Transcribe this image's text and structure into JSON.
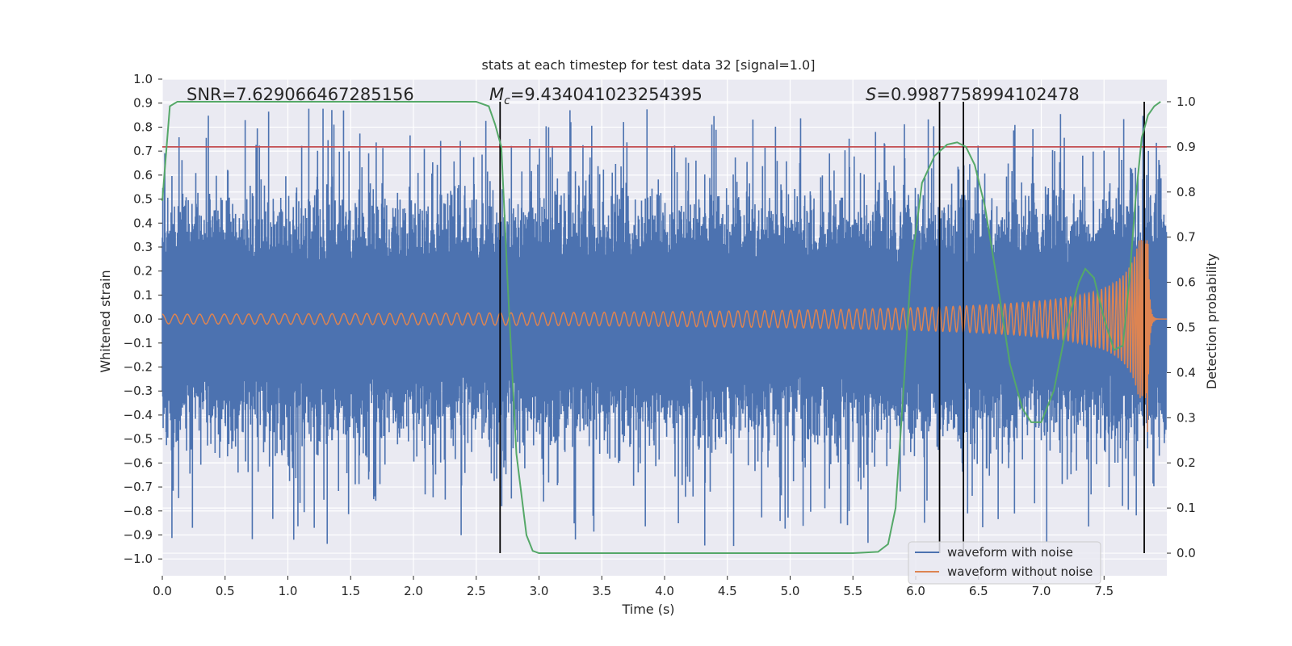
{
  "chart_data": {
    "type": "line",
    "title": "stats at each timestep for test data 32 [signal=1.0]",
    "xlabel": "Time (s)",
    "ylabel": "Whitened strain",
    "y2label": "Detection probability",
    "xlim": [
      0.0,
      8.0
    ],
    "ylim": [
      -1.07,
      1.0
    ],
    "y2lim": [
      -0.05,
      1.05
    ],
    "x_ticks": [
      "0.0",
      "0.5",
      "1.0",
      "1.5",
      "2.0",
      "2.5",
      "3.0",
      "3.5",
      "4.0",
      "4.5",
      "5.0",
      "5.5",
      "6.0",
      "6.5",
      "7.0",
      "7.5"
    ],
    "y_ticks": [
      "1.0",
      "0.9",
      "0.8",
      "0.7",
      "0.6",
      "0.5",
      "0.4",
      "0.3",
      "0.2",
      "0.1",
      "0.0",
      "−0.1",
      "−0.2",
      "−0.3",
      "−0.4",
      "−0.5",
      "−0.6",
      "−0.7",
      "−0.8",
      "−0.9",
      "−1.0"
    ],
    "y2_ticks": [
      "1.0",
      "0.9",
      "0.8",
      "0.7",
      "0.6",
      "0.5",
      "0.4",
      "0.3",
      "0.2",
      "0.1",
      "0.0"
    ],
    "annotations": {
      "snr": "SNR=7.629066467285156",
      "mc": "=9.434041023254395",
      "s": "=0.9987758994102478"
    },
    "threshold": 0.9,
    "vertical_lines": [
      2.69,
      6.19,
      6.38,
      7.82
    ],
    "legend": {
      "location": "lower-right",
      "entries": [
        "waveform with noise",
        "waveform without noise"
      ]
    },
    "series": [
      {
        "name": "waveform with noise",
        "color": "#4c72b0",
        "envelope_typical": [
          -0.45,
          0.5
        ],
        "peak_max": 0.91,
        "peak_min": -1.0
      },
      {
        "name": "waveform without noise",
        "color": "#dd8452",
        "start_amplitude": 0.02,
        "end_amplitude": 0.33,
        "merger_time": 7.85
      },
      {
        "name": "Detection probability",
        "color": "#55a868",
        "axis": "right",
        "x": [
          0.0,
          0.06,
          0.12,
          0.3,
          1.0,
          2.0,
          2.5,
          2.6,
          2.65,
          2.7,
          2.75,
          2.82,
          2.9,
          2.95,
          3.0,
          3.5,
          4.0,
          4.5,
          5.0,
          5.5,
          5.7,
          5.78,
          5.84,
          5.9,
          5.96,
          6.05,
          6.15,
          6.25,
          6.33,
          6.4,
          6.47,
          6.55,
          6.65,
          6.75,
          6.85,
          6.92,
          7.0,
          7.1,
          7.2,
          7.3,
          7.35,
          7.42,
          7.5,
          7.58,
          7.65,
          7.7,
          7.75,
          7.8,
          7.85,
          7.9,
          7.95
        ],
        "y": [
          0.78,
          0.99,
          1.0,
          1.0,
          1.0,
          1.0,
          1.0,
          0.99,
          0.95,
          0.9,
          0.6,
          0.22,
          0.04,
          0.005,
          0.0,
          0.0,
          0.0,
          0.0,
          0.0,
          0.0,
          0.003,
          0.02,
          0.1,
          0.35,
          0.62,
          0.82,
          0.88,
          0.905,
          0.91,
          0.9,
          0.86,
          0.77,
          0.6,
          0.42,
          0.32,
          0.29,
          0.29,
          0.36,
          0.5,
          0.6,
          0.63,
          0.61,
          0.52,
          0.45,
          0.46,
          0.6,
          0.78,
          0.92,
          0.97,
          0.99,
          1.0
        ]
      }
    ]
  }
}
